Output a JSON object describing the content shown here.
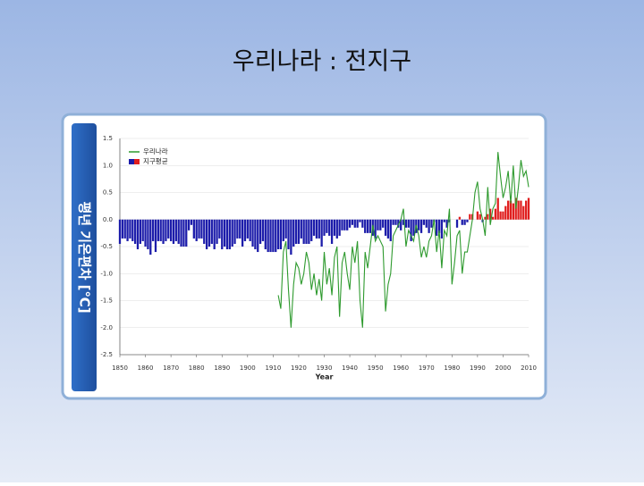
{
  "slide_title": "우리나라 : 전지구",
  "chart_data": {
    "type": "bar-line",
    "y_label": "평년 기온편차 [℃]",
    "x_label": "Year",
    "x": [
      1850,
      1851,
      1852,
      1853,
      1854,
      1855,
      1856,
      1857,
      1858,
      1859,
      1860,
      1861,
      1862,
      1863,
      1864,
      1865,
      1866,
      1867,
      1868,
      1869,
      1870,
      1871,
      1872,
      1873,
      1874,
      1875,
      1876,
      1877,
      1878,
      1879,
      1880,
      1881,
      1882,
      1883,
      1884,
      1885,
      1886,
      1887,
      1888,
      1889,
      1890,
      1891,
      1892,
      1893,
      1894,
      1895,
      1896,
      1897,
      1898,
      1899,
      1900,
      1901,
      1902,
      1903,
      1904,
      1905,
      1906,
      1907,
      1908,
      1909,
      1910,
      1911,
      1912,
      1913,
      1914,
      1915,
      1916,
      1917,
      1918,
      1919,
      1920,
      1921,
      1922,
      1923,
      1924,
      1925,
      1926,
      1927,
      1928,
      1929,
      1930,
      1931,
      1932,
      1933,
      1934,
      1935,
      1936,
      1937,
      1938,
      1939,
      1940,
      1941,
      1942,
      1943,
      1944,
      1945,
      1946,
      1947,
      1948,
      1949,
      1950,
      1951,
      1952,
      1953,
      1954,
      1955,
      1956,
      1957,
      1958,
      1959,
      1960,
      1961,
      1962,
      1963,
      1964,
      1965,
      1966,
      1967,
      1968,
      1969,
      1970,
      1971,
      1972,
      1973,
      1974,
      1975,
      1976,
      1977,
      1978,
      1979,
      1980,
      1981,
      1982,
      1983,
      1984,
      1985,
      1986,
      1987,
      1988,
      1989,
      1990,
      1991,
      1992,
      1993,
      1994,
      1995,
      1996,
      1997,
      1998,
      1999,
      2000,
      2001,
      2002,
      2003,
      2004,
      2005,
      2006,
      2007,
      2008,
      2009,
      2010
    ],
    "series": [
      {
        "name": "지구평균",
        "kind": "bar",
        "color": "#1c1caa",
        "positive_color": "#e01e1e",
        "values": [
          -0.45,
          -0.35,
          -0.35,
          -0.4,
          -0.35,
          -0.4,
          -0.45,
          -0.55,
          -0.45,
          -0.4,
          -0.5,
          -0.55,
          -0.65,
          -0.4,
          -0.6,
          -0.4,
          -0.4,
          -0.45,
          -0.4,
          -0.35,
          -0.4,
          -0.45,
          -0.4,
          -0.45,
          -0.5,
          -0.5,
          -0.5,
          -0.2,
          -0.1,
          -0.35,
          -0.4,
          -0.35,
          -0.35,
          -0.45,
          -0.55,
          -0.5,
          -0.45,
          -0.55,
          -0.45,
          -0.35,
          -0.55,
          -0.5,
          -0.55,
          -0.55,
          -0.5,
          -0.45,
          -0.35,
          -0.35,
          -0.5,
          -0.4,
          -0.35,
          -0.4,
          -0.5,
          -0.55,
          -0.6,
          -0.45,
          -0.4,
          -0.55,
          -0.6,
          -0.6,
          -0.6,
          -0.6,
          -0.55,
          -0.55,
          -0.4,
          -0.35,
          -0.55,
          -0.65,
          -0.5,
          -0.45,
          -0.45,
          -0.35,
          -0.45,
          -0.45,
          -0.45,
          -0.4,
          -0.3,
          -0.35,
          -0.35,
          -0.5,
          -0.3,
          -0.25,
          -0.3,
          -0.45,
          -0.3,
          -0.35,
          -0.3,
          -0.2,
          -0.2,
          -0.2,
          -0.15,
          -0.1,
          -0.15,
          -0.15,
          -0.05,
          -0.15,
          -0.25,
          -0.25,
          -0.25,
          -0.3,
          -0.35,
          -0.2,
          -0.2,
          -0.15,
          -0.3,
          -0.35,
          -0.4,
          -0.1,
          -0.1,
          -0.15,
          -0.2,
          -0.1,
          -0.15,
          -0.15,
          -0.4,
          -0.3,
          -0.25,
          -0.2,
          -0.25,
          -0.1,
          -0.15,
          -0.25,
          -0.15,
          -0.05,
          -0.3,
          -0.25,
          -0.35,
          -0.05,
          -0.15,
          -0.05,
          0.0,
          0.0,
          -0.15,
          0.05,
          -0.1,
          -0.1,
          -0.05,
          0.1,
          0.1,
          0.0,
          0.15,
          0.1,
          -0.05,
          0.05,
          0.1,
          0.2,
          0.05,
          0.2,
          0.4,
          0.15,
          0.15,
          0.25,
          0.35,
          0.35,
          0.3,
          0.4,
          0.35,
          0.35,
          0.25,
          0.35,
          0.4
        ]
      },
      {
        "name": "우리나라",
        "kind": "line",
        "color": "#2e9a2e",
        "values": [
          null,
          null,
          null,
          null,
          null,
          null,
          null,
          null,
          null,
          null,
          null,
          null,
          null,
          null,
          null,
          null,
          null,
          null,
          null,
          null,
          null,
          null,
          null,
          null,
          null,
          null,
          null,
          null,
          null,
          null,
          null,
          null,
          null,
          null,
          null,
          null,
          null,
          null,
          null,
          null,
          null,
          null,
          null,
          null,
          null,
          null,
          null,
          null,
          null,
          null,
          null,
          null,
          null,
          null,
          null,
          null,
          null,
          null,
          null,
          null,
          null,
          null,
          -1.4,
          -1.65,
          -0.6,
          -0.4,
          -1.3,
          -2.0,
          -1.2,
          -0.8,
          -0.9,
          -1.2,
          -1.0,
          -0.6,
          -0.8,
          -1.3,
          -1.0,
          -1.4,
          -1.1,
          -1.5,
          -0.6,
          -1.2,
          -0.9,
          -1.4,
          -0.7,
          -0.5,
          -1.8,
          -0.8,
          -0.6,
          -1.0,
          -1.3,
          -0.5,
          -0.8,
          -0.4,
          -1.5,
          -2.0,
          -0.6,
          -0.9,
          -0.5,
          -0.1,
          -0.4,
          -0.3,
          -0.4,
          -0.5,
          -1.7,
          -1.2,
          -1.0,
          -0.3,
          -0.2,
          -0.1,
          0.0,
          0.2,
          -0.5,
          -0.2,
          -0.3,
          -0.4,
          -0.1,
          -0.3,
          -0.7,
          -0.5,
          -0.7,
          -0.4,
          -0.3,
          0.0,
          -0.6,
          -0.2,
          -0.9,
          -0.2,
          -0.3,
          0.2,
          -1.2,
          -0.8,
          -0.3,
          -0.2,
          -1.0,
          -0.6,
          -0.6,
          -0.3,
          0.0,
          0.5,
          0.7,
          0.2,
          0.0,
          -0.3,
          0.6,
          -0.1,
          0.2,
          0.3,
          1.25,
          0.8,
          0.4,
          0.6,
          0.9,
          0.3,
          1.0,
          0.2,
          0.6,
          1.1,
          0.8,
          0.9,
          0.6
        ]
      }
    ],
    "xlim": [
      1850,
      2010
    ],
    "xticks": [
      1850,
      1860,
      1870,
      1880,
      1890,
      1900,
      1910,
      1920,
      1930,
      1940,
      1950,
      1960,
      1970,
      1980,
      1990,
      2000,
      2010
    ],
    "ylim": [
      -2.5,
      1.5
    ],
    "yticks": [
      -2.5,
      {
        "value": -2,
        "label": "-2.0"
      },
      -1.5,
      {
        "value": -1,
        "label": "-1.0"
      },
      -0.5,
      {
        "value": 0,
        "label": "0.0"
      },
      0.5,
      {
        "value": 1,
        "label": "1.0"
      },
      1.5
    ],
    "grid": true,
    "legend": "upper-left"
  }
}
